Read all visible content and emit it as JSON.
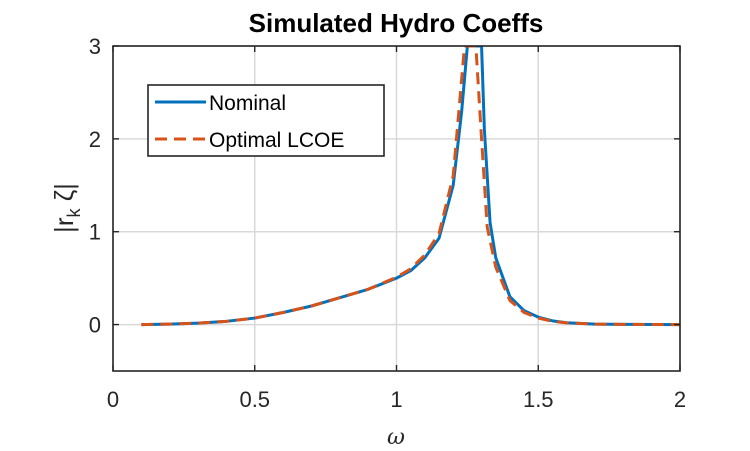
{
  "chart_data": {
    "type": "line",
    "title": "Simulated Hydro Coeffs",
    "xlabel": "ω",
    "ylabel": "|r",
    "ylabel_sub": "k",
    "ylabel_tail": " ζ|",
    "xlim": [
      0,
      2
    ],
    "ylim": [
      -0.5,
      3
    ],
    "xticks": [
      "0",
      "0.5",
      "1",
      "1.5",
      "2"
    ],
    "yticks": [
      "0",
      "1",
      "2",
      "3"
    ],
    "grid": true,
    "legend_position": "top-left",
    "series": [
      {
        "name": "Nominal",
        "color": "#0072BD",
        "style": "solid",
        "x": [
          0.1,
          0.2,
          0.3,
          0.4,
          0.5,
          0.6,
          0.7,
          0.8,
          0.9,
          1.0,
          1.05,
          1.1,
          1.15,
          1.2,
          1.23,
          1.25,
          1.27,
          1.28,
          1.3,
          1.31,
          1.33,
          1.35,
          1.4,
          1.45,
          1.5,
          1.55,
          1.6,
          1.7,
          1.8,
          1.9,
          2.0
        ],
        "values": [
          0.0,
          0.005,
          0.015,
          0.035,
          0.07,
          0.13,
          0.2,
          0.29,
          0.38,
          0.5,
          0.58,
          0.72,
          0.93,
          1.5,
          2.3,
          3.0,
          3.0,
          3.0,
          3.0,
          2.1,
          1.1,
          0.72,
          0.3,
          0.15,
          0.08,
          0.04,
          0.02,
          0.005,
          0.002,
          0.001,
          0.0
        ]
      },
      {
        "name": "Optimal LCOE",
        "color": "#D95319",
        "style": "dashed",
        "x": [
          0.1,
          0.2,
          0.3,
          0.4,
          0.5,
          0.6,
          0.7,
          0.8,
          0.9,
          1.0,
          1.05,
          1.1,
          1.15,
          1.2,
          1.22,
          1.24,
          1.25,
          1.26,
          1.28,
          1.3,
          1.32,
          1.35,
          1.4,
          1.45,
          1.5,
          1.55,
          1.6,
          1.7,
          1.8,
          1.9,
          2.0
        ],
        "values": [
          0.0,
          0.005,
          0.015,
          0.035,
          0.07,
          0.13,
          0.2,
          0.29,
          0.38,
          0.51,
          0.6,
          0.75,
          0.98,
          1.6,
          2.3,
          3.0,
          3.0,
          3.0,
          3.0,
          2.0,
          1.05,
          0.62,
          0.26,
          0.13,
          0.07,
          0.035,
          0.018,
          0.005,
          0.002,
          0.001,
          0.0
        ]
      }
    ]
  }
}
